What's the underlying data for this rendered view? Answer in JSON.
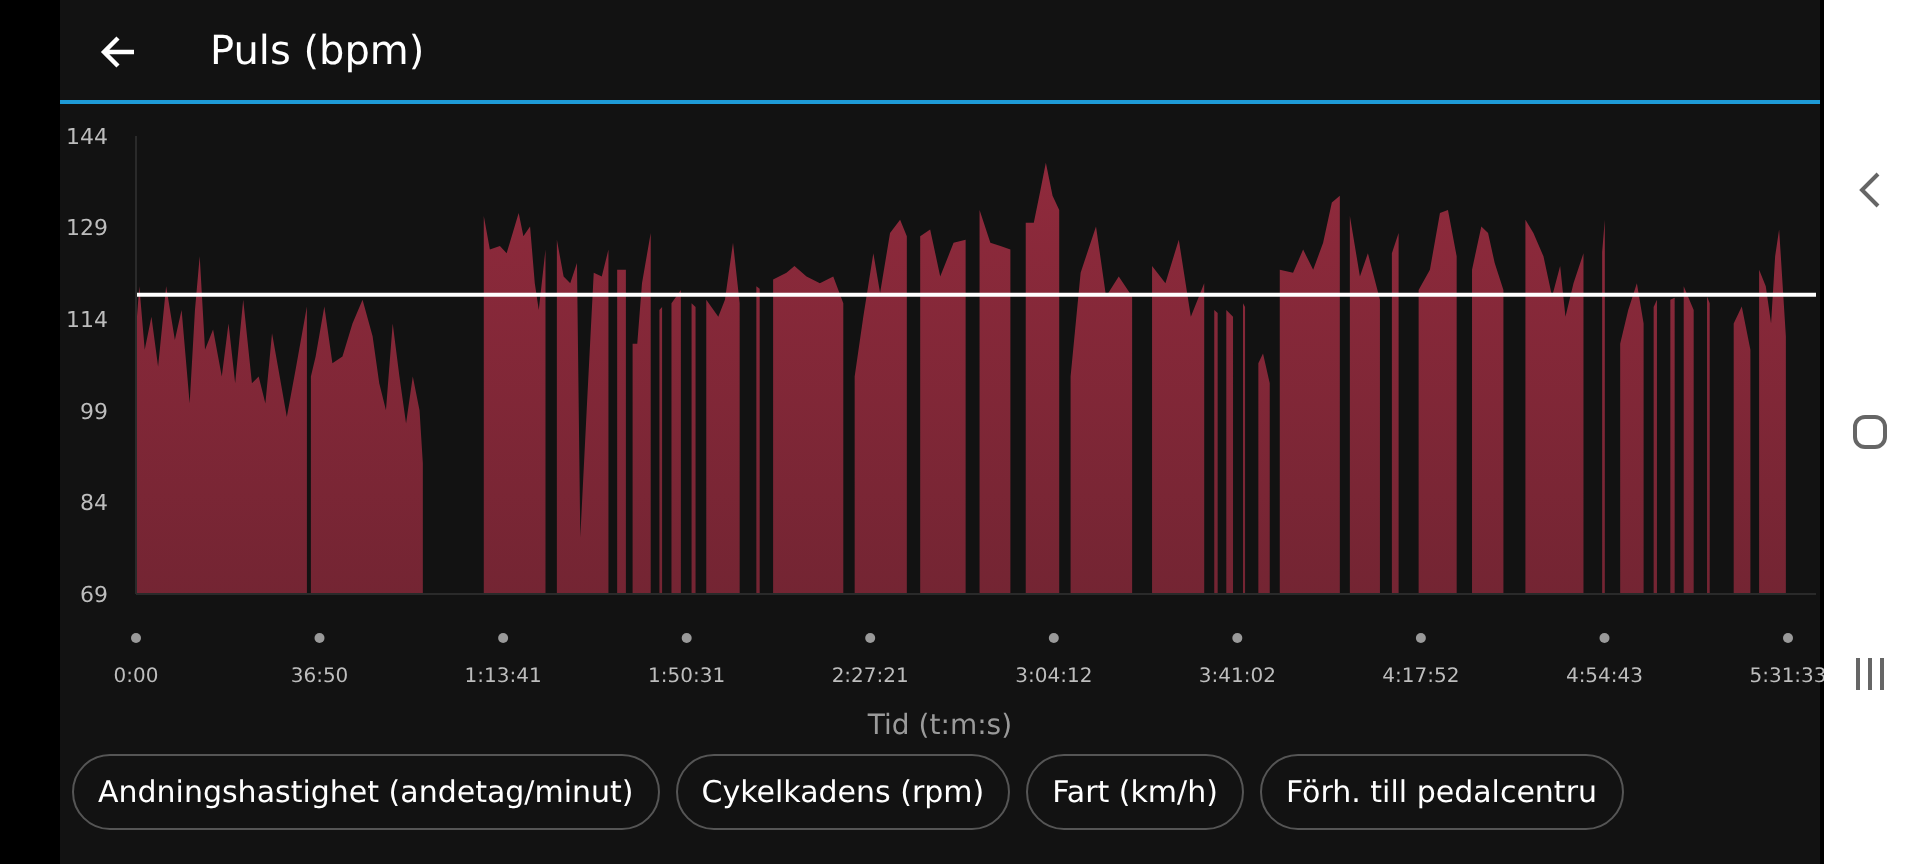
{
  "chart_data": {
    "type": "area",
    "title": "Puls (bpm)",
    "xlabel": "Tid (t:m:s)",
    "x": [
      0,
      40,
      105,
      186,
      266,
      363,
      468,
      549,
      646,
      710,
      767,
      831,
      928,
      1033,
      1114,
      1194,
      1291,
      1396,
      1477,
      1558,
      1638,
      1759,
      1816,
      1921,
      2058,
      2082,
      2106,
      2163,
      2268,
      2365,
      2486,
      2607,
      2728,
      2849,
      2929,
      3010,
      3091,
      3172,
      3252,
      3333,
      3414,
      3454,
      3500,
      4188,
      4261,
      4382,
      4463,
      4608,
      4665,
      4745,
      4802,
      4850,
      4931,
      4971,
      5068,
      5149,
      5229,
      5310,
      5350,
      5431,
      5512,
      5609,
      5689,
      5746,
      5794,
      5899,
      5939,
      5980,
      6036,
      6093,
      6198,
      6246,
      6303,
      6335,
      6368,
      6448,
      6561,
      6601,
      6690,
      6738,
      6770,
      6867,
      7012,
      7092,
      7189,
      7269,
      7326,
      7470,
      7510,
      7551,
      7672,
      7833,
      7929,
      8074,
      8235,
      8396,
      8517,
      8622,
      8654,
      8758,
      8879,
      8960,
      9080,
      9201,
      9282,
      9362,
      9443,
      9563,
      9684,
      9749,
      9845,
      9990,
      10054,
      10158,
      10288,
      10409,
      10529,
      10634,
      10714,
      10811,
      10892,
      10956,
      11037,
      11117,
      11190,
      11254,
      11375,
      11560,
      11681,
      11834,
      11995,
      12173,
      12235,
      12396,
      12557,
      12702,
      12863,
      12928,
      12984,
      13025,
      13065,
      13129,
      13210,
      13274,
      13330,
      13355,
      13386,
      13515,
      13571,
      13652,
      13692,
      13773,
      13933,
      14054,
      14175,
      14295,
      14400,
      14496,
      14537,
      14617,
      14738,
      14834,
      14979,
      15043,
      15123,
      15204,
      15260,
      15445,
      15581,
      15702,
      15798,
      15903,
      15999,
      16088,
      16200,
      16281,
      16361,
      16466,
      16546,
      16731,
      16827,
      16948,
      17052,
      17149,
      17213,
      17310,
      17430,
      17511,
      17655,
      17687,
      17727,
      17872,
      17969,
      18073,
      18154,
      18234,
      18275,
      18315,
      18395,
      18476,
      18528,
      18580,
      18637,
      18757,
      18837,
      18918,
      18950,
      18998,
      19239,
      19336,
      19440,
      19496,
      19545,
      19625,
      19689,
      19738,
      19786,
      19867
    ],
    "series": [
      {
        "color": "#e33a58",
        "values": [
          112.3,
          119.4,
          109,
          114.4,
          106.2,
          119.4,
          110.6,
          115.5,
          100.2,
          115.5,
          124.3,
          109,
          112.3,
          104.6,
          113.3,
          103.5,
          117.2,
          103.5,
          104.6,
          100.2,
          111.7,
          102.4,
          98,
          105.7,
          116.1,
          null,
          104.6,
          107.9,
          116.1,
          106.8,
          107.9,
          113.3,
          117.2,
          111.2,
          103.5,
          99.1,
          113.3,
          104.6,
          96.9,
          104.6,
          99.1,
          90.4,
          null,
          130.9,
          125.4,
          126,
          124.8,
          131.4,
          127.6,
          129.2,
          119.9,
          115.5,
          125.4,
          null,
          127,
          121,
          119.9,
          123.2,
          78.3,
          100.2,
          121.6,
          121,
          125.4,
          null,
          122.1,
          122.1,
          null,
          110,
          110,
          119.9,
          128.1,
          null,
          115.5,
          116,
          null,
          116.6,
          118.8,
          null,
          116.6,
          116,
          null,
          117.2,
          114.4,
          117.2,
          126.5,
          116.6,
          null,
          119.4,
          119,
          null,
          120.5,
          121.6,
          122.7,
          121,
          119.9,
          121,
          116.6,
          null,
          104.6,
          114.4,
          124.8,
          118.3,
          128.1,
          130.3,
          127.6,
          null,
          127.6,
          128.7,
          121,
          123.2,
          126.5,
          127,
          null,
          131.9,
          126.5,
          126,
          125.4,
          null,
          129.8,
          129.8,
          135.2,
          139.6,
          134.2,
          131.9,
          null,
          104.6,
          121.6,
          129.2,
          117.7,
          121,
          117.7,
          null,
          122.7,
          119.9,
          127,
          114.4,
          119.9,
          null,
          115.5,
          115,
          null,
          115.5,
          114.4,
          null,
          116.6,
          116,
          null,
          106.8,
          108.4,
          103.5,
          null,
          122.1,
          121.6,
          125.4,
          122.1,
          126.5,
          133.1,
          134.2,
          null,
          130.9,
          121,
          124.8,
          117.2,
          null,
          124.8,
          128.1,
          null,
          118.8,
          122.1,
          131.4,
          131.9,
          124.3,
          null,
          122.1,
          129.2,
          128.1,
          123.2,
          118.8,
          null,
          130.3,
          128.1,
          124.3,
          117.7,
          122.7,
          114.4,
          119.9,
          124.8,
          null,
          125,
          130.3,
          null,
          110,
          115.5,
          119.9,
          113.3,
          null,
          116,
          117.2,
          null,
          117.2,
          117.5,
          null,
          119.4,
          115.5,
          null,
          117.7,
          116.6,
          null,
          113.3,
          116.1,
          109,
          null,
          122.1,
          119.4,
          113.3,
          124.3,
          128.7,
          111.2
        ]
      }
    ],
    "xlim": [
      0,
      20230
    ],
    "ylim": [
      69,
      144
    ],
    "yticks": [
      69,
      84,
      99,
      114,
      129,
      144
    ],
    "xticks": [
      {
        "value": 0,
        "label": "0:00"
      },
      {
        "value": 2210,
        "label": "36:50"
      },
      {
        "value": 4421,
        "label": "1:13:41"
      },
      {
        "value": 6631,
        "label": "1:50:31"
      },
      {
        "value": 8841,
        "label": "2:27:21"
      },
      {
        "value": 11052,
        "label": "3:04:12"
      },
      {
        "value": 13262,
        "label": "3:41:02"
      },
      {
        "value": 15472,
        "label": "4:17:52"
      },
      {
        "value": 17683,
        "label": "4:54:43"
      },
      {
        "value": 19893,
        "label": "5:31:33"
      }
    ],
    "ref_lines": [
      {
        "axis": "y",
        "value": 118,
        "color": "#ffffff"
      }
    ],
    "annotations": [
      "Andningshastighet (andetag/minut)",
      "Cykelkadens (rpm)",
      "Fart (km/h)",
      "Förh. till pedalcentru"
    ],
    "grid": false,
    "legend": false
  }
}
